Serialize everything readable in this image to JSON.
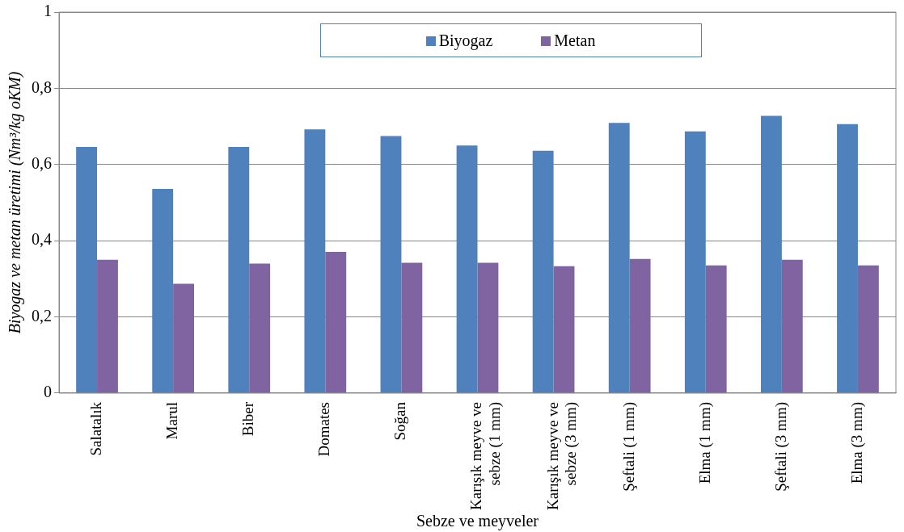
{
  "chart_data": {
    "type": "bar",
    "xlabel": "Sebze ve meyveler",
    "ylabel": "Biyogaz ve metan üretimi (Nm³/kg oKM)",
    "categories": [
      "Salatalık",
      "Marul",
      "Biber",
      "Domates",
      "Soğan",
      "Karışık meyve ve sebze (1 mm)",
      "Karışık meyve ve sebze (3 mm)",
      "Şeftali (1 mm)",
      "Elma (1 mm)",
      "Şeftali (3 mm)",
      "Elma (3 mm)"
    ],
    "series": [
      {
        "name": "Biyogaz",
        "color": "#4f81bd",
        "values": [
          0.646,
          0.536,
          0.646,
          0.692,
          0.675,
          0.65,
          0.636,
          0.709,
          0.687,
          0.728,
          0.706
        ]
      },
      {
        "name": "Metan",
        "color": "#8064a2",
        "values": [
          0.35,
          0.287,
          0.34,
          0.371,
          0.342,
          0.342,
          0.333,
          0.352,
          0.335,
          0.35,
          0.335
        ]
      }
    ],
    "ylim": [
      0,
      1
    ],
    "yticks": [
      0,
      {
        "value": 0.2,
        "label": "0,2"
      },
      {
        "value": 0.4,
        "label": "0,4"
      },
      {
        "value": 0.6,
        "label": "0,6"
      },
      {
        "value": 0.8,
        "label": "0,8"
      },
      1
    ],
    "grid": "y",
    "legend": "top"
  }
}
